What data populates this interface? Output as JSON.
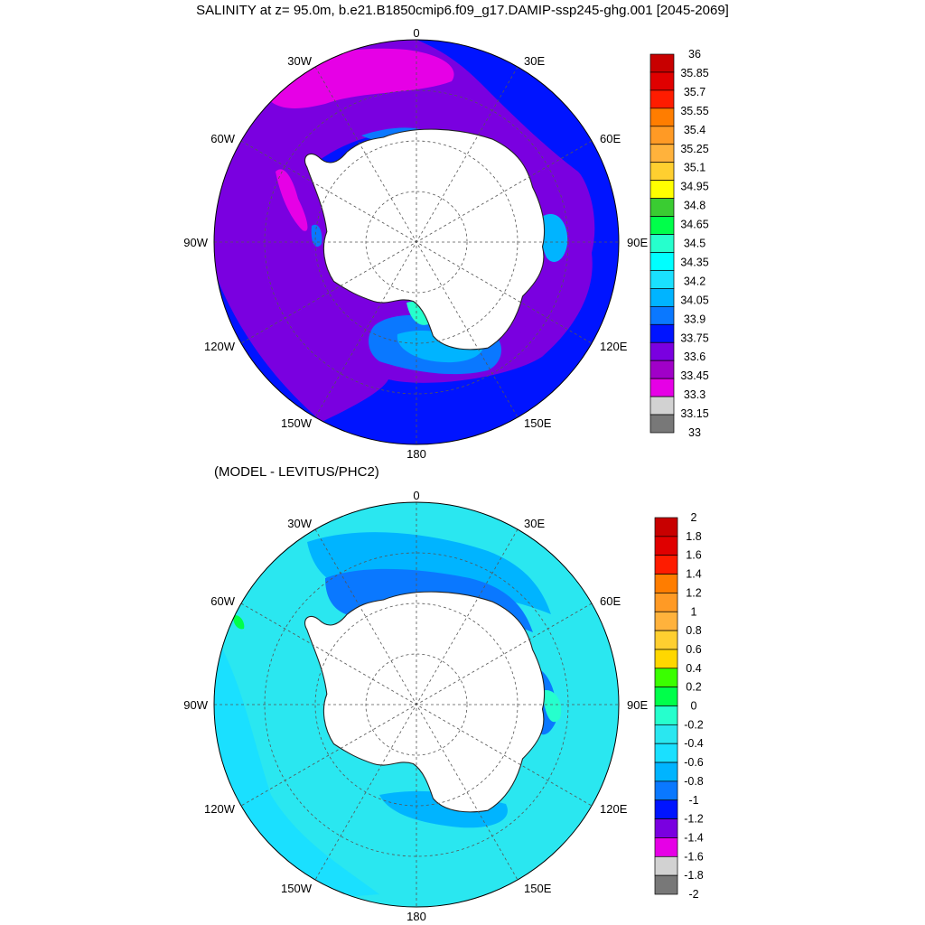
{
  "title": "SALINITY at z=  95.0m, b.e21.B1850cmip6.f09_g17.DAMIP-ssp245-ghg.001 [2045-2069]",
  "subtitle": "(MODEL - LEVITUS/PHC2)",
  "longitude_labels": [
    "0",
    "30E",
    "60E",
    "90E",
    "120E",
    "150E",
    "180",
    "150W",
    "120W",
    "90W",
    "60W",
    "30W"
  ],
  "top_panel": {
    "variable": "salinity",
    "colorbar_labels": [
      "36",
      "35.85",
      "35.7",
      "35.55",
      "35.4",
      "35.25",
      "35.1",
      "34.95",
      "34.8",
      "34.65",
      "34.5",
      "34.35",
      "34.2",
      "34.05",
      "33.9",
      "33.75",
      "33.6",
      "33.45",
      "33.3",
      "33.15",
      "33"
    ],
    "colorbar_colors": [
      "#c80000",
      "#e00000",
      "#fe1c00",
      "#ff7d00",
      "#ff9a25",
      "#ffb23c",
      "#ffcf30",
      "#ffff00",
      "#3acc32",
      "#00ff4a",
      "#26ffcd",
      "#00ffff",
      "#1ae0ff",
      "#00b4ff",
      "#0a78ff",
      "#0014ff",
      "#7a00e0",
      "#a000c8",
      "#e600e6",
      "#d2d2d2",
      "#787878"
    ]
  },
  "bottom_panel": {
    "variable": "salinity difference",
    "colorbar_labels": [
      "2",
      "1.8",
      "1.6",
      "1.4",
      "1.2",
      "1",
      "0.8",
      "0.6",
      "0.4",
      "0.2",
      "0",
      "-0.2",
      "-0.4",
      "-0.6",
      "-0.8",
      "-1",
      "-1.2",
      "-1.4",
      "-1.6",
      "-1.8",
      "-2"
    ],
    "colorbar_colors": [
      "#c80000",
      "#e00000",
      "#fe1c00",
      "#ff7d00",
      "#ff9a25",
      "#ffb23c",
      "#ffcf30",
      "#ffd700",
      "#3aff00",
      "#00ff4a",
      "#26ffcd",
      "#2ae7f0",
      "#1ae0ff",
      "#00b4ff",
      "#0a78ff",
      "#0014ff",
      "#7a00e0",
      "#e600e6",
      "#d2d2d2",
      "#787878"
    ]
  },
  "colors": {
    "land": "#ffffff",
    "grid": "#555555",
    "coast": "#222222"
  }
}
